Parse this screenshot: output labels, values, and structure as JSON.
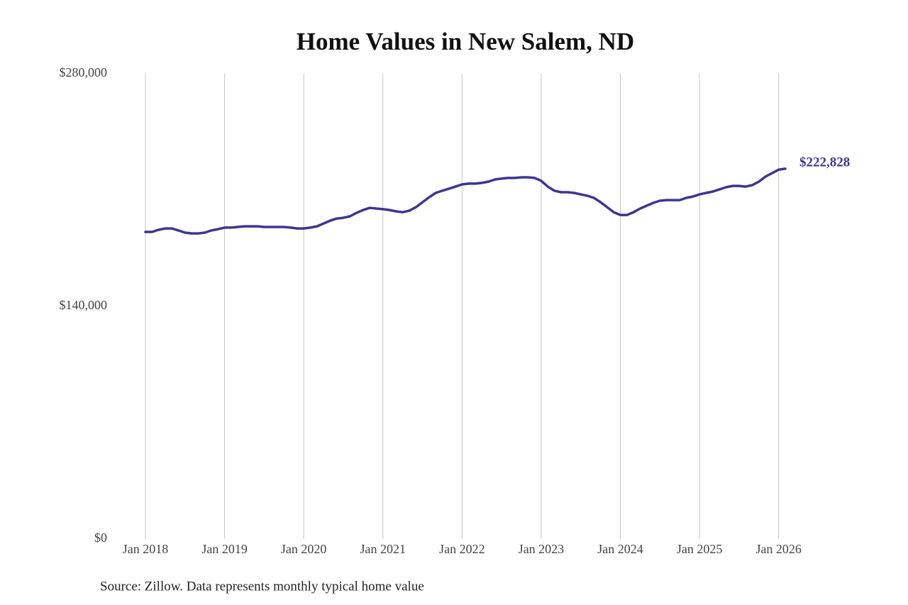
{
  "chart_data": {
    "type": "line",
    "title": "Home Values in New Salem, ND",
    "source": "Source: Zillow. Data represents monthly typical home value",
    "color": "#3d3595",
    "x": [
      "2018-01",
      "2018-02",
      "2018-03",
      "2018-04",
      "2018-05",
      "2018-06",
      "2018-07",
      "2018-08",
      "2018-09",
      "2018-10",
      "2018-11",
      "2018-12",
      "2019-01",
      "2019-02",
      "2019-03",
      "2019-04",
      "2019-05",
      "2019-06",
      "2019-07",
      "2019-08",
      "2019-09",
      "2019-10",
      "2019-11",
      "2019-12",
      "2020-01",
      "2020-02",
      "2020-03",
      "2020-04",
      "2020-05",
      "2020-06",
      "2020-07",
      "2020-08",
      "2020-09",
      "2020-10",
      "2020-11",
      "2020-12",
      "2021-01",
      "2021-02",
      "2021-03",
      "2021-04",
      "2021-05",
      "2021-06",
      "2021-07",
      "2021-08",
      "2021-09",
      "2021-10",
      "2021-11",
      "2021-12",
      "2022-01",
      "2022-02",
      "2022-03",
      "2022-04",
      "2022-05",
      "2022-06",
      "2022-07",
      "2022-08",
      "2022-09",
      "2022-10",
      "2022-11",
      "2022-12",
      "2023-01",
      "2023-02",
      "2023-03",
      "2023-04",
      "2023-05",
      "2023-06",
      "2023-07",
      "2023-08",
      "2023-09",
      "2023-10",
      "2023-11",
      "2023-12",
      "2024-01",
      "2024-02",
      "2024-03",
      "2024-04",
      "2024-05",
      "2024-06",
      "2024-07",
      "2024-08",
      "2024-09",
      "2024-10",
      "2024-11",
      "2024-12",
      "2025-01",
      "2025-02",
      "2025-03",
      "2025-04",
      "2025-05",
      "2025-06",
      "2025-07",
      "2025-08",
      "2025-09",
      "2025-10",
      "2025-11",
      "2025-12",
      "2026-01",
      "2026-02"
    ],
    "values": [
      184800,
      184800,
      186100,
      186900,
      186900,
      185700,
      184400,
      183900,
      183900,
      184400,
      185700,
      186500,
      187400,
      187400,
      187800,
      188200,
      188200,
      188200,
      187800,
      187800,
      187800,
      187800,
      187400,
      186900,
      186900,
      187400,
      188200,
      189900,
      191600,
      192900,
      193300,
      194200,
      196300,
      198000,
      199300,
      198900,
      198500,
      198000,
      197200,
      196700,
      197600,
      199700,
      202700,
      205700,
      208300,
      209600,
      210800,
      212100,
      213400,
      213900,
      213900,
      214300,
      215100,
      216400,
      216900,
      217300,
      217300,
      217700,
      217700,
      217300,
      215600,
      212100,
      209600,
      208700,
      208700,
      208300,
      207400,
      206600,
      205300,
      202700,
      199700,
      196700,
      195000,
      195000,
      196700,
      198900,
      200600,
      202300,
      203600,
      204000,
      204000,
      204000,
      205300,
      206100,
      207400,
      208300,
      209100,
      210400,
      211700,
      212500,
      212500,
      212100,
      213000,
      215100,
      218100,
      220200,
      222300,
      222828
    ],
    "value_labels": [
      null,
      null,
      null,
      null,
      null,
      null,
      null,
      null,
      null,
      null,
      null,
      null,
      null,
      null,
      null,
      null,
      null,
      null,
      null,
      null,
      null,
      null,
      null,
      null,
      null,
      null,
      null,
      null,
      null,
      null,
      null,
      null,
      null,
      null,
      null,
      null,
      null,
      null,
      null,
      null,
      null,
      null,
      null,
      null,
      null,
      null,
      null,
      null,
      null,
      null,
      null,
      null,
      null,
      null,
      null,
      null,
      null,
      null,
      null,
      null,
      null,
      null,
      null,
      null,
      null,
      null,
      null,
      null,
      null,
      null,
      null,
      null,
      null,
      null,
      null,
      null,
      null,
      null,
      null,
      null,
      null,
      null,
      null,
      null,
      null,
      null,
      null,
      null,
      null,
      null,
      null,
      null,
      null,
      null,
      null,
      null,
      null,
      "$222,828"
    ],
    "xlim": [
      "2018-01",
      "2026-02"
    ],
    "xticks": [
      {
        "value": "2018-01",
        "label": "Jan 2018"
      },
      {
        "value": "2019-01",
        "label": "Jan 2019"
      },
      {
        "value": "2020-01",
        "label": "Jan 2020"
      },
      {
        "value": "2021-01",
        "label": "Jan 2021"
      },
      {
        "value": "2022-01",
        "label": "Jan 2022"
      },
      {
        "value": "2023-01",
        "label": "Jan 2023"
      },
      {
        "value": "2024-01",
        "label": "Jan 2024"
      },
      {
        "value": "2025-01",
        "label": "Jan 2025"
      },
      {
        "value": "2026-01",
        "label": "Jan 2026"
      }
    ],
    "ylim": [
      0,
      280000
    ],
    "yticks": [
      {
        "value": 0,
        "label": "$0"
      },
      {
        "value": 140000,
        "label": "$140,000"
      },
      {
        "value": 280000,
        "label": "$280,000"
      }
    ],
    "grid": true
  }
}
